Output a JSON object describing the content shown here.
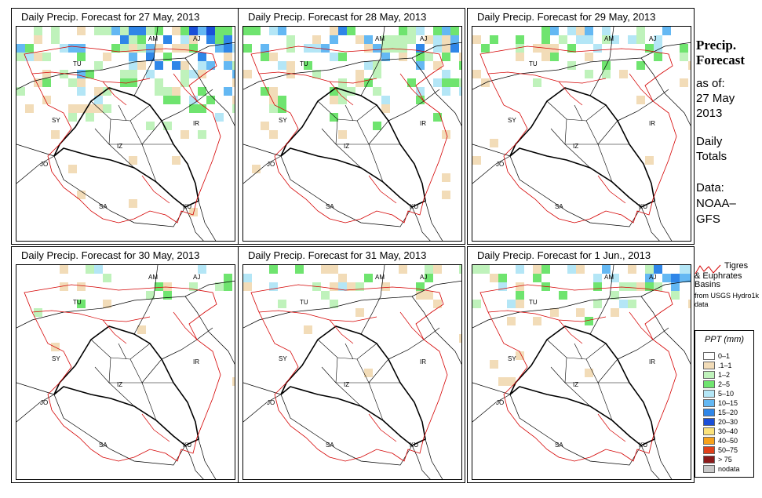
{
  "panels": [
    {
      "title": "Daily Precip. Forecast for  27 May, 2013",
      "intensity": 1.0,
      "north_reach": 1.0,
      "east_bias": 0.7
    },
    {
      "title": "Daily Precip. Forecast for  28 May, 2013",
      "intensity": 0.9,
      "north_reach": 0.85,
      "east_bias": 0.5
    },
    {
      "title": "Daily Precip. Forecast for  29 May, 2013",
      "intensity": 0.6,
      "north_reach": 0.6,
      "east_bias": 0.7
    },
    {
      "title": "Daily Precip. Forecast for  30 May, 2013",
      "intensity": 0.35,
      "north_reach": 0.4,
      "east_bias": 0.4
    },
    {
      "title": "Daily Precip. Forecast for  31 May, 2013",
      "intensity": 0.5,
      "north_reach": 0.5,
      "east_bias": 0.4
    },
    {
      "title": "Daily Precip. Forecast for  1 Jun., 2013",
      "intensity": 0.75,
      "north_reach": 0.6,
      "east_bias": 0.6
    }
  ],
  "map_labels": [
    "AM",
    "AJ",
    "TU",
    "SY",
    "IR",
    "JO",
    "SA",
    "KU",
    "IZ"
  ],
  "side": {
    "heading_1": "Precip.",
    "heading_2": "Forecast",
    "asof_label": "as of:",
    "asof_date_1": "27 May",
    "asof_date_2": "2013",
    "totals_1": "Daily",
    "totals_2": "Totals",
    "data_1": "Data:",
    "data_2": "NOAA–",
    "data_3": "GFS"
  },
  "basin_legend": {
    "line1": "Tigres",
    "line2": "& Euphrates Basins",
    "line3": "from USGS Hydro1k data",
    "color": "#d40000"
  },
  "ppt_legend": {
    "title": "PPT (mm)",
    "items": [
      {
        "label": "0–1",
        "color": "#ffffff"
      },
      {
        "label": ".1–1",
        "color": "#f2dcb8"
      },
      {
        "label": "1–2",
        "color": "#bff2bb"
      },
      {
        "label": "2–5",
        "color": "#6fe46f"
      },
      {
        "label": "5–10",
        "color": "#b4e6f6"
      },
      {
        "label": "10–15",
        "color": "#64b8f3"
      },
      {
        "label": "15–20",
        "color": "#2f86e8"
      },
      {
        "label": "20–30",
        "color": "#1a4fd8"
      },
      {
        "label": "30–40",
        "color": "#fbe27a"
      },
      {
        "label": "40–50",
        "color": "#f7a21c"
      },
      {
        "label": "50–75",
        "color": "#e0401a"
      },
      {
        "label": "> 75",
        "color": "#8b1a1a"
      },
      {
        "label": "nodata",
        "color": "#c8c8c8"
      }
    ]
  }
}
